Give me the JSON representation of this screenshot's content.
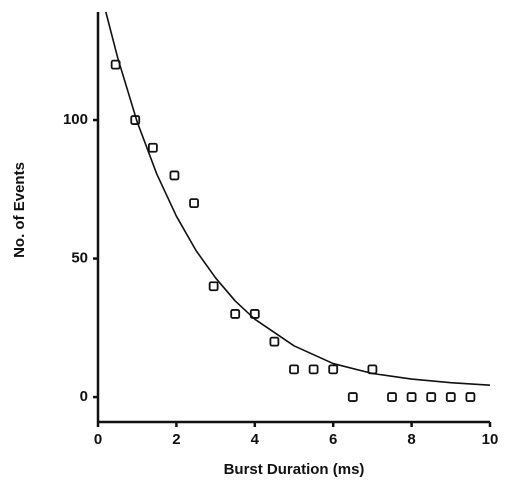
{
  "chart_data": {
    "type": "scatter",
    "xlabel": "Burst Duration (ms)",
    "ylabel": "No. of Events",
    "xlim": [
      0,
      10
    ],
    "ylim": [
      -9,
      139
    ],
    "xticks": [
      0,
      2,
      4,
      6,
      8,
      10
    ],
    "yticks": [
      0,
      50,
      100
    ],
    "series": [
      {
        "type": "scatter",
        "color": "#111111",
        "x": [
          0.45,
          0.95,
          1.4,
          1.95,
          2.45,
          2.95,
          3.5,
          4.0,
          4.5,
          5.0,
          5.5,
          6.0,
          6.5,
          7.0,
          7.5,
          8.0,
          8.5,
          9.0,
          9.5
        ],
        "values": [
          120,
          100,
          90,
          80,
          70,
          40,
          30,
          30,
          20,
          10,
          10,
          10,
          0,
          10,
          0,
          0,
          0,
          0,
          0
        ]
      },
      {
        "type": "line",
        "color": "#111111",
        "x": [
          0.2,
          0.5,
          1,
          1.5,
          2,
          2.5,
          3,
          3.5,
          4,
          5,
          6,
          7,
          8,
          9,
          10
        ],
        "values": [
          139,
          122.6,
          99.3,
          80.5,
          65.3,
          52.9,
          43,
          34.7,
          28.1,
          18.5,
          12.1,
          8.5,
          6.5,
          5.2,
          4.3
        ]
      }
    ]
  }
}
